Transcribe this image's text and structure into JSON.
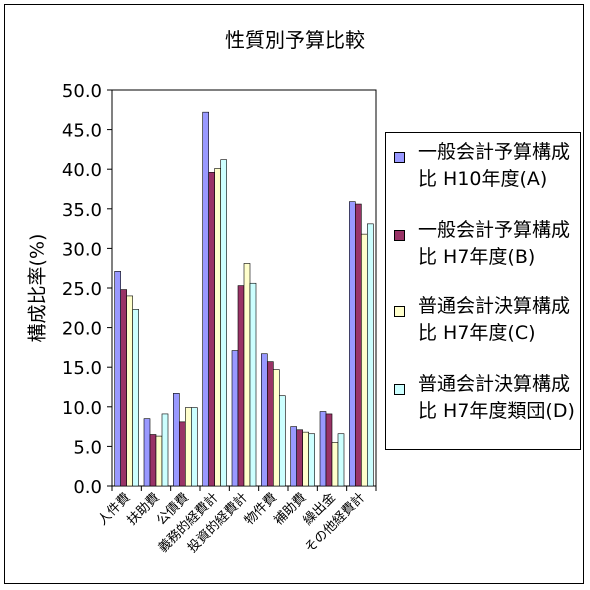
{
  "chart_data": {
    "type": "bar",
    "title": "性質別予算比較",
    "ylabel": "構成比率(%)",
    "xlabel": "",
    "ylim": [
      0,
      50
    ],
    "yticks": [
      "0.0",
      "5.0",
      "10.0",
      "15.0",
      "20.0",
      "25.0",
      "30.0",
      "35.0",
      "40.0",
      "45.0",
      "50.0"
    ],
    "grid": false,
    "legend_position": "right",
    "categories": [
      "人件費",
      "扶助費",
      "公債費",
      "義務的経費計",
      "投資的経費計",
      "物件費",
      "補助費",
      "繰出金",
      "その他経費計"
    ],
    "series": [
      {
        "name": "一般会計予算構成比 H10年度(A)",
        "color": "#9999ff",
        "values": [
          27.1,
          8.5,
          11.7,
          47.2,
          17.1,
          16.7,
          7.5,
          9.4,
          35.9
        ]
      },
      {
        "name": "一般会計予算構成比 H7年度(B)",
        "color": "#993366",
        "values": [
          24.8,
          6.5,
          8.1,
          39.6,
          25.3,
          15.7,
          7.1,
          9.1,
          35.6
        ]
      },
      {
        "name": "普通会計決算構成比 H7年度(C)",
        "color": "#ffffcc",
        "values": [
          24.0,
          6.3,
          9.9,
          40.1,
          28.1,
          14.7,
          6.8,
          5.5,
          31.8
        ]
      },
      {
        "name": "普通会計決算構成比 H7年度類団(D)",
        "color": "#ccffff",
        "values": [
          22.3,
          9.1,
          9.9,
          41.2,
          25.6,
          11.4,
          6.6,
          6.6,
          33.1
        ]
      }
    ]
  }
}
